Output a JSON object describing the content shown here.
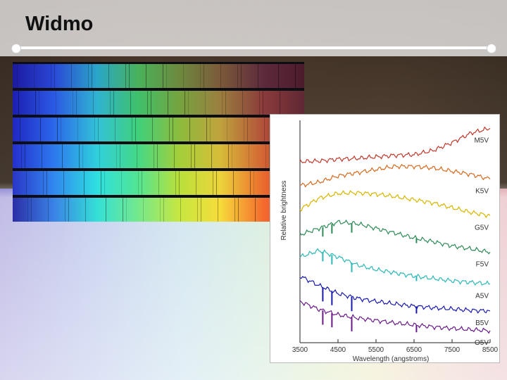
{
  "slide": {
    "title": "Widmo"
  },
  "spectra_strips": [
    {
      "gradient": [
        "#1b1aa0",
        "#2a47d6",
        "#2aa6c8",
        "#49b25b",
        "#6d8a3e",
        "#7c5a3a",
        "#5d2a3c",
        "#4b1b2c"
      ]
    },
    {
      "gradient": [
        "#1c1fb3",
        "#2b58e3",
        "#2fb4d0",
        "#3fc06a",
        "#74a43f",
        "#9b7f3f",
        "#8b3b3a",
        "#5f2834"
      ]
    },
    {
      "gradient": [
        "#1f27c2",
        "#2b66ea",
        "#32c2d7",
        "#3fd07b",
        "#8cbc3c",
        "#bfa33c",
        "#b3503a",
        "#6e2b35"
      ]
    },
    {
      "gradient": [
        "#2430cd",
        "#2d78ee",
        "#2fd0dc",
        "#45d886",
        "#a3cf39",
        "#d6bd39",
        "#d46434",
        "#8a2e36"
      ]
    },
    {
      "gradient": [
        "#2a36c8",
        "#3187ef",
        "#2ee0e0",
        "#52e492",
        "#b9e03a",
        "#ecd43b",
        "#ea6b2d",
        "#ca2f3a"
      ]
    },
    {
      "gradient": [
        "#2b2ea6",
        "#3a82e6",
        "#34e0d6",
        "#74e88c",
        "#c6e741",
        "#f6dc3a",
        "#f46b2e",
        "#f23a45"
      ]
    }
  ],
  "chart_data": {
    "type": "line",
    "xlabel": "Wavelength (angstroms)",
    "ylabel": "Relative brightness",
    "xlim": [
      3500,
      8500
    ],
    "x_ticks": [
      "3500",
      "4500",
      "5500",
      "6500",
      "7500",
      "8500"
    ],
    "series": [
      {
        "name": "M5V",
        "color": "#c0392b",
        "x": [
          3500,
          4000,
          4500,
          5000,
          5500,
          6000,
          6500,
          7000,
          7500,
          8000,
          8500
        ],
        "y": [
          5.7,
          5.72,
          5.78,
          5.8,
          5.85,
          5.9,
          5.92,
          6.05,
          6.3,
          6.6,
          6.75
        ]
      },
      {
        "name": "K5V",
        "color": "#d66a1f",
        "x": [
          3500,
          4000,
          4500,
          5000,
          5500,
          6000,
          6500,
          7000,
          7500,
          8000,
          8500
        ],
        "y": [
          4.95,
          5.05,
          5.25,
          5.35,
          5.45,
          5.55,
          5.55,
          5.5,
          5.4,
          5.3,
          5.15
        ]
      },
      {
        "name": "G5V",
        "color": "#d8b600",
        "x": [
          3500,
          4000,
          4500,
          5000,
          5500,
          6000,
          6500,
          7000,
          7500,
          8000,
          8500
        ],
        "y": [
          4.2,
          4.55,
          4.7,
          4.72,
          4.68,
          4.6,
          4.5,
          4.4,
          4.25,
          4.1,
          4.0
        ]
      },
      {
        "name": "F5V",
        "color": "#2e8b57",
        "x": [
          3500,
          4000,
          4500,
          5000,
          5500,
          6000,
          6500,
          7000,
          7500,
          8000,
          8500
        ],
        "y": [
          3.4,
          3.6,
          3.8,
          3.75,
          3.6,
          3.45,
          3.3,
          3.18,
          3.05,
          2.95,
          2.85
        ]
      },
      {
        "name": "A5V",
        "color": "#2fb8b8",
        "x": [
          3500,
          4000,
          4500,
          5000,
          5500,
          6000,
          6500,
          7000,
          7500,
          8000,
          8500
        ],
        "y": [
          2.7,
          2.9,
          2.7,
          2.45,
          2.3,
          2.2,
          2.1,
          2.02,
          1.95,
          1.9,
          1.85
        ]
      },
      {
        "name": "B5V",
        "color": "#1a1ab0",
        "x": [
          3500,
          4000,
          4500,
          5000,
          5500,
          6000,
          6500,
          7000,
          7500,
          8000,
          8500
        ],
        "y": [
          2.1,
          1.8,
          1.55,
          1.4,
          1.3,
          1.22,
          1.15,
          1.1,
          1.06,
          1.02,
          1.0
        ]
      },
      {
        "name": "O5V",
        "color": "#6a1a8a",
        "x": [
          3500,
          4000,
          4500,
          5000,
          5500,
          6000,
          6500,
          7000,
          7500,
          8000,
          8500
        ],
        "y": [
          1.3,
          1.05,
          0.88,
          0.78,
          0.7,
          0.62,
          0.56,
          0.5,
          0.45,
          0.41,
          0.38
        ]
      }
    ],
    "ylim": [
      0,
      7
    ],
    "grid": false,
    "legend": "none"
  }
}
